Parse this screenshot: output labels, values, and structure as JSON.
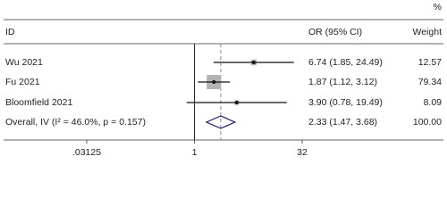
{
  "chart_data": {
    "type": "forest",
    "columns": {
      "id": "ID",
      "estimate": "OR (95% CI)",
      "weight_unit": "%",
      "weight": "Weight"
    },
    "studies": [
      {
        "name": "Wu 2021",
        "or": 6.74,
        "lower": 1.85,
        "upper": 24.49,
        "value_label": "6.74 (1.85, 24.49)",
        "weight": 12.57,
        "weight_label": "12.57"
      },
      {
        "name": "Fu 2021",
        "or": 1.87,
        "lower": 1.12,
        "upper": 3.12,
        "value_label": "1.87 (1.12, 3.12)",
        "weight": 79.34,
        "weight_label": "79.34"
      },
      {
        "name": "Bloomfield 2021",
        "or": 3.9,
        "lower": 0.78,
        "upper": 19.49,
        "value_label": "3.90 (0.78, 19.49)",
        "weight": 8.09,
        "weight_label": "8.09"
      }
    ],
    "overall": {
      "name": "Overall, IV (I² = 46.0%, p = 0.157)",
      "or": 2.33,
      "lower": 1.47,
      "upper": 3.68,
      "value_label": "2.33 (1.47, 3.68)",
      "weight": 100,
      "weight_label": "100.00"
    },
    "xlim": [
      0.03125,
      32
    ],
    "xticks": [
      {
        "value": 0.03125,
        "label": ".03125"
      },
      1,
      32
    ],
    "log_scale": true,
    "reference_line": 1,
    "box_color": "#b3b3b3",
    "diamond_color": "#1a1a6e"
  }
}
